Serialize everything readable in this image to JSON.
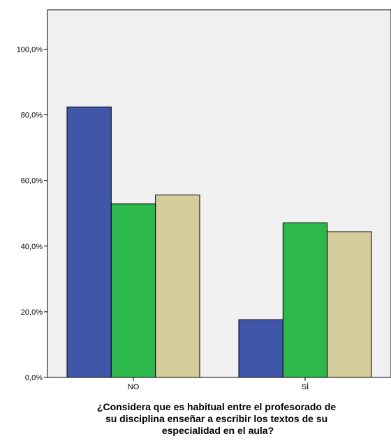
{
  "chart_data": {
    "type": "bar",
    "title": "",
    "xlabel_lines": [
      "¿Considera que es habitual entre el profesorado de",
      "su disciplina enseñar a escribir los textos de su",
      "especialidad en el aula?"
    ],
    "ylabel": "",
    "ylim": [
      0,
      112
    ],
    "y_ticks": [
      {
        "value": 0,
        "label": "0,0%"
      },
      {
        "value": 20,
        "label": "20,0%"
      },
      {
        "value": 40,
        "label": "40,0%"
      },
      {
        "value": 60,
        "label": "60,0%"
      },
      {
        "value": 80,
        "label": "80,0%"
      },
      {
        "value": 100,
        "label": "100,0%"
      }
    ],
    "categories": [
      "NO",
      "SÍ"
    ],
    "series": [
      {
        "color": "#3f56a9",
        "values": [
          82.4,
          17.6
        ]
      },
      {
        "color": "#2db84b",
        "values": [
          52.9,
          47.1
        ]
      },
      {
        "color": "#d4cc9b",
        "values": [
          55.6,
          44.4
        ]
      }
    ],
    "plot_background": "#f0f0f0",
    "grid": false,
    "legend": "none"
  }
}
